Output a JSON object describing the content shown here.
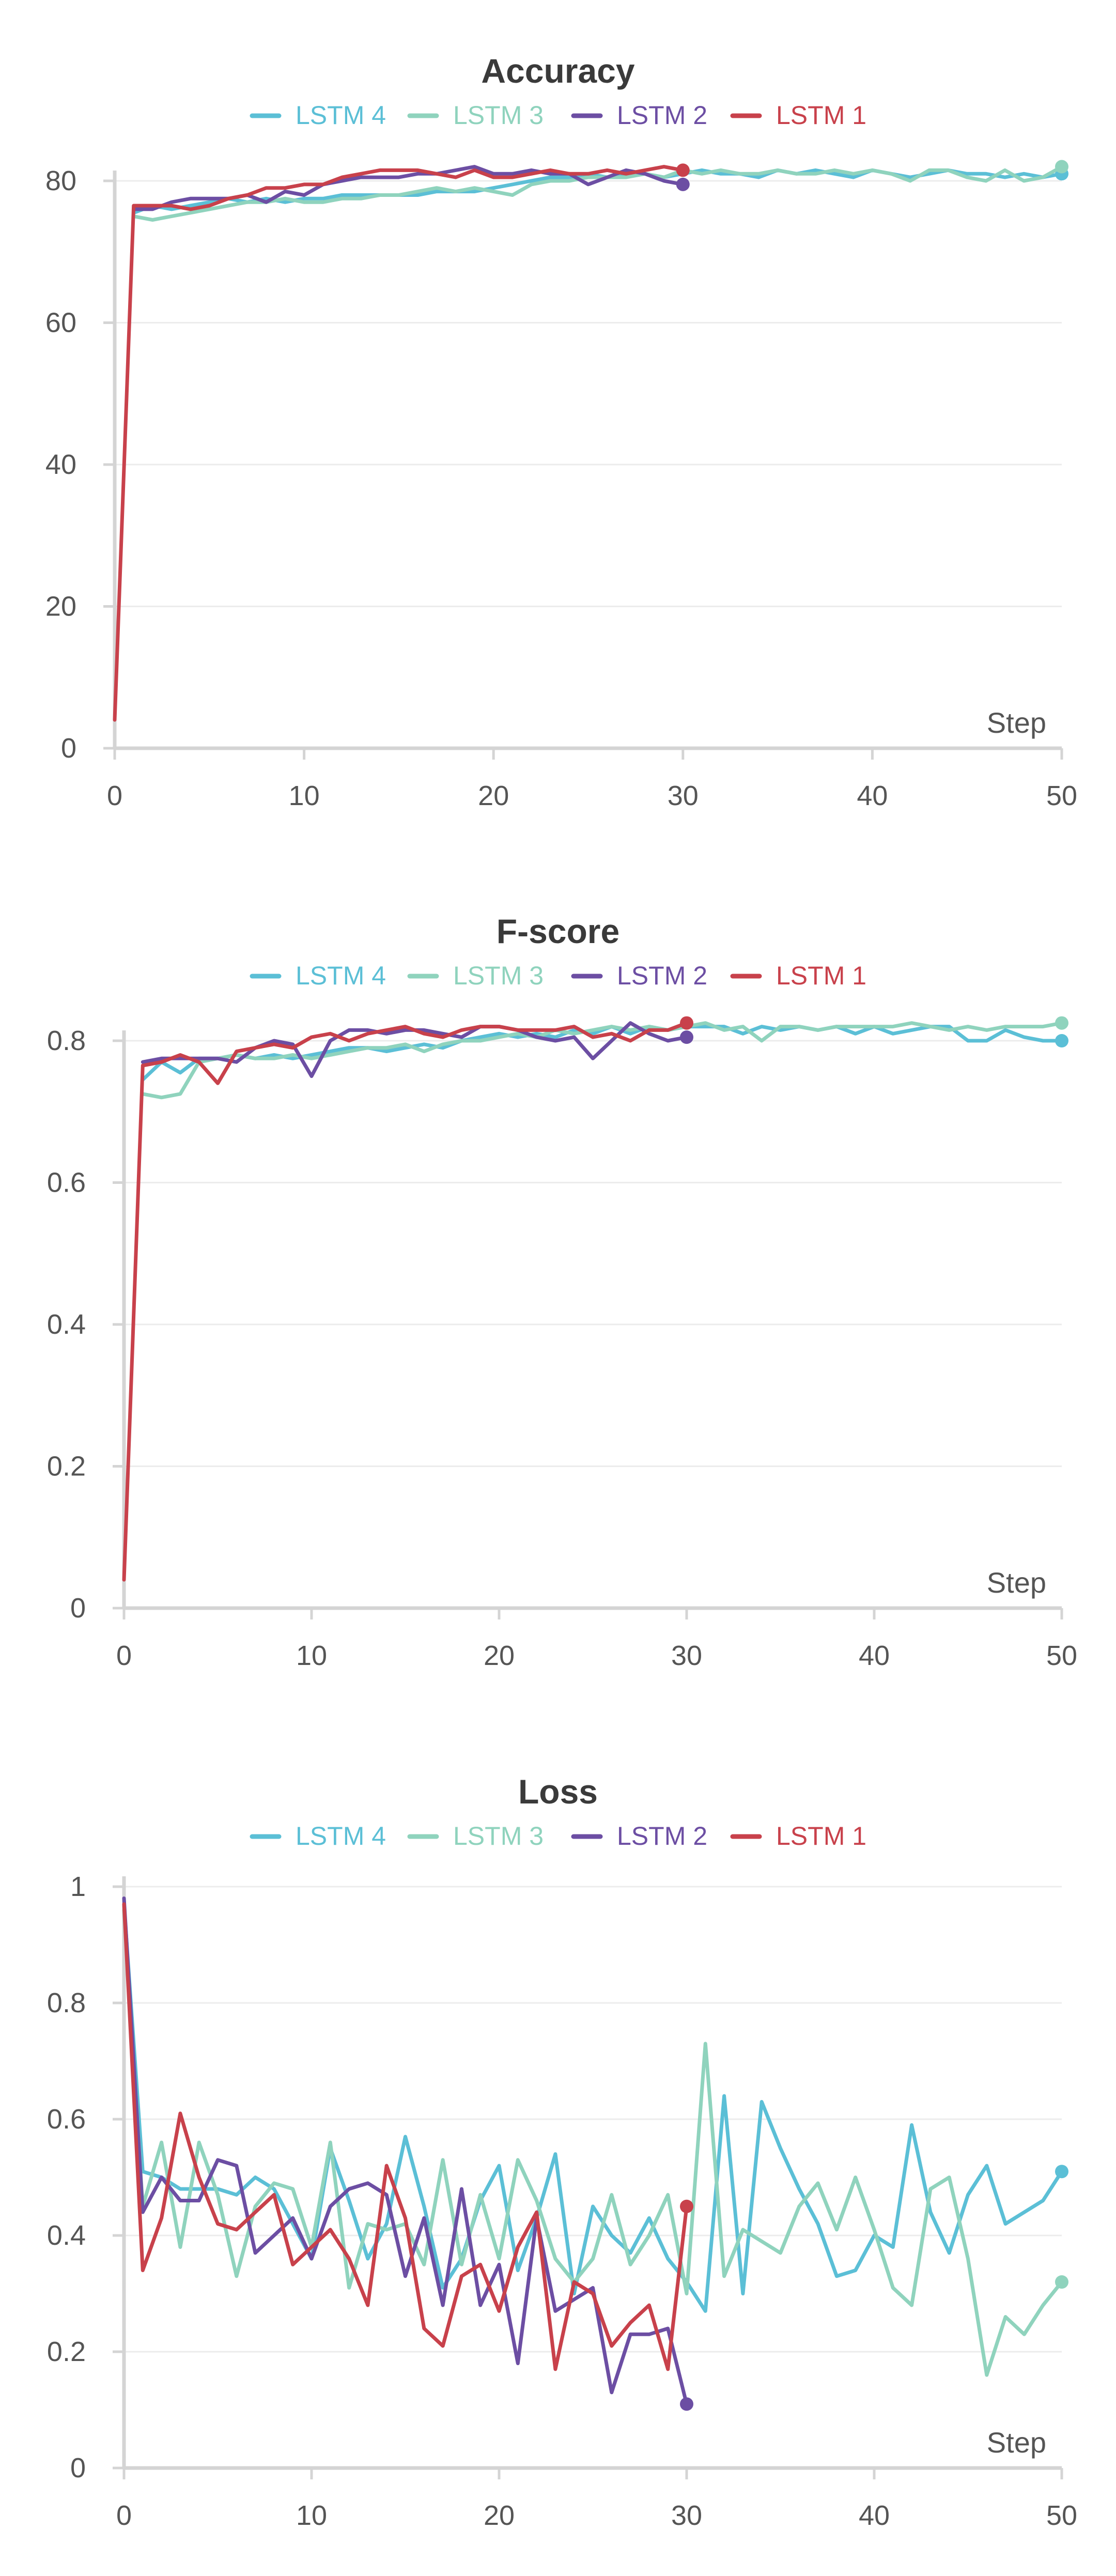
{
  "colors": {
    "LSTM 4": "#5bbfd6",
    "LSTM 3": "#8fd3bd",
    "LSTM 2": "#6c4ea3",
    "LSTM 1": "#c8414b"
  },
  "chart_data": [
    {
      "type": "line",
      "title": "Accuracy",
      "xlabel": "Step",
      "ylabel": "",
      "xlim": [
        0,
        50
      ],
      "ylim": [
        0,
        80
      ],
      "xticks": [
        0,
        10,
        20,
        30,
        40,
        50
      ],
      "yticks": [
        0,
        20,
        40,
        60,
        80
      ],
      "grid": true,
      "legend": "top-center",
      "series": [
        {
          "name": "LSTM 4",
          "x": [
            1,
            2,
            3,
            4,
            5,
            6,
            7,
            8,
            9,
            10,
            11,
            12,
            13,
            14,
            15,
            16,
            17,
            18,
            19,
            20,
            21,
            22,
            23,
            24,
            25,
            26,
            27,
            28,
            29,
            30,
            31,
            32,
            33,
            34,
            35,
            36,
            37,
            38,
            39,
            40,
            41,
            42,
            43,
            44,
            45,
            46,
            47,
            48,
            49,
            50
          ],
          "y": [
            75.5,
            76.5,
            76,
            76.5,
            77,
            77.5,
            77,
            77.5,
            77,
            77.5,
            77.5,
            78,
            78,
            78,
            78,
            78,
            78.5,
            78.5,
            78.5,
            79,
            79.5,
            80,
            80.5,
            80.5,
            81,
            80.5,
            81,
            81,
            80.5,
            81,
            81.5,
            81,
            81,
            80.5,
            81.5,
            81,
            81.5,
            81,
            80.5,
            81.5,
            81,
            80.5,
            81,
            81.5,
            81,
            81,
            80.5,
            81,
            80.5,
            81
          ]
        },
        {
          "name": "LSTM 3",
          "x": [
            1,
            2,
            3,
            4,
            5,
            6,
            7,
            8,
            9,
            10,
            11,
            12,
            13,
            14,
            15,
            16,
            17,
            18,
            19,
            20,
            21,
            22,
            23,
            24,
            25,
            26,
            27,
            28,
            29,
            30,
            31,
            32,
            33,
            34,
            35,
            36,
            37,
            38,
            39,
            40,
            41,
            42,
            43,
            44,
            45,
            46,
            47,
            48,
            49,
            50
          ],
          "y": [
            75,
            74.5,
            75,
            75.5,
            76,
            76.5,
            77,
            77,
            77.5,
            77,
            77,
            77.5,
            77.5,
            78,
            78,
            78.5,
            79,
            78.5,
            79,
            78.5,
            78,
            79.5,
            80,
            80,
            80.5,
            80.5,
            80.5,
            81,
            80.5,
            81.5,
            81,
            81.5,
            81,
            81,
            81.5,
            81,
            81,
            81.5,
            81,
            81.5,
            81,
            80,
            81.5,
            81.5,
            80.5,
            80,
            81.5,
            80,
            80.5,
            82
          ]
        },
        {
          "name": "LSTM 2",
          "x": [
            1,
            2,
            3,
            4,
            5,
            6,
            7,
            8,
            9,
            10,
            11,
            12,
            13,
            14,
            15,
            16,
            17,
            18,
            19,
            20,
            21,
            22,
            23,
            24,
            25,
            26,
            27,
            28,
            29,
            30
          ],
          "y": [
            76,
            76,
            77,
            77.5,
            77.5,
            77.5,
            78,
            77,
            78.5,
            78,
            79.5,
            80,
            80.5,
            80.5,
            80.5,
            81,
            81,
            81.5,
            82,
            81,
            81,
            81.5,
            81,
            81,
            79.5,
            80.5,
            81.5,
            81,
            80,
            79.5
          ]
        },
        {
          "name": "LSTM 1",
          "x": [
            0,
            1,
            2,
            3,
            4,
            5,
            6,
            7,
            8,
            9,
            10,
            11,
            12,
            13,
            14,
            15,
            16,
            17,
            18,
            19,
            20,
            21,
            22,
            23,
            24,
            25,
            26,
            27,
            28,
            29,
            30
          ],
          "y": [
            4,
            76.5,
            76.5,
            76.5,
            76,
            76.5,
            77.5,
            78,
            79,
            79,
            79.5,
            79.5,
            80.5,
            81,
            81.5,
            81.5,
            81.5,
            81,
            80.5,
            81.5,
            80.5,
            80.5,
            81,
            81.5,
            81,
            81,
            81.5,
            81,
            81.5,
            82,
            81.5
          ]
        }
      ]
    },
    {
      "type": "line",
      "title": "F-score",
      "xlabel": "Step",
      "ylabel": "",
      "xlim": [
        0,
        50
      ],
      "ylim": [
        0,
        0.8
      ],
      "xticks": [
        0,
        10,
        20,
        30,
        40,
        50
      ],
      "yticks": [
        0,
        0.2,
        0.4,
        0.6,
        0.8
      ],
      "grid": true,
      "legend": "top-center",
      "series": [
        {
          "name": "LSTM 4",
          "x": [
            1,
            2,
            3,
            4,
            5,
            6,
            7,
            8,
            9,
            10,
            11,
            12,
            13,
            14,
            15,
            16,
            17,
            18,
            19,
            20,
            21,
            22,
            23,
            24,
            25,
            26,
            27,
            28,
            29,
            30,
            31,
            32,
            33,
            34,
            35,
            36,
            37,
            38,
            39,
            40,
            41,
            42,
            43,
            44,
            45,
            46,
            47,
            48,
            49,
            50
          ],
          "y": [
            0.745,
            0.77,
            0.755,
            0.775,
            0.775,
            0.78,
            0.775,
            0.78,
            0.775,
            0.78,
            0.785,
            0.79,
            0.79,
            0.785,
            0.79,
            0.795,
            0.79,
            0.8,
            0.805,
            0.81,
            0.805,
            0.81,
            0.805,
            0.815,
            0.81,
            0.82,
            0.81,
            0.82,
            0.815,
            0.82,
            0.82,
            0.82,
            0.81,
            0.82,
            0.815,
            0.82,
            0.815,
            0.82,
            0.81,
            0.82,
            0.81,
            0.815,
            0.82,
            0.82,
            0.8,
            0.8,
            0.815,
            0.805,
            0.8,
            0.8
          ]
        },
        {
          "name": "LSTM 3",
          "x": [
            1,
            2,
            3,
            4,
            5,
            6,
            7,
            8,
            9,
            10,
            11,
            12,
            13,
            14,
            15,
            16,
            17,
            18,
            19,
            20,
            21,
            22,
            23,
            24,
            25,
            26,
            27,
            28,
            29,
            30,
            31,
            32,
            33,
            34,
            35,
            36,
            37,
            38,
            39,
            40,
            41,
            42,
            43,
            44,
            45,
            46,
            47,
            48,
            49,
            50
          ],
          "y": [
            0.725,
            0.72,
            0.725,
            0.77,
            0.775,
            0.78,
            0.775,
            0.775,
            0.78,
            0.775,
            0.78,
            0.785,
            0.79,
            0.79,
            0.795,
            0.785,
            0.795,
            0.8,
            0.8,
            0.805,
            0.81,
            0.805,
            0.815,
            0.81,
            0.815,
            0.82,
            0.815,
            0.82,
            0.815,
            0.82,
            0.825,
            0.815,
            0.82,
            0.8,
            0.82,
            0.82,
            0.815,
            0.82,
            0.82,
            0.82,
            0.82,
            0.825,
            0.82,
            0.815,
            0.82,
            0.815,
            0.82,
            0.82,
            0.82,
            0.825
          ]
        },
        {
          "name": "LSTM 2",
          "x": [
            1,
            2,
            3,
            4,
            5,
            6,
            7,
            8,
            9,
            10,
            11,
            12,
            13,
            14,
            15,
            16,
            17,
            18,
            19,
            20,
            21,
            22,
            23,
            24,
            25,
            26,
            27,
            28,
            29,
            30
          ],
          "y": [
            0.77,
            0.775,
            0.775,
            0.775,
            0.775,
            0.77,
            0.79,
            0.8,
            0.795,
            0.75,
            0.8,
            0.815,
            0.815,
            0.81,
            0.815,
            0.815,
            0.81,
            0.805,
            0.82,
            0.82,
            0.815,
            0.805,
            0.8,
            0.805,
            0.775,
            0.8,
            0.825,
            0.81,
            0.8,
            0.805
          ]
        },
        {
          "name": "LSTM 1",
          "x": [
            0,
            1,
            2,
            3,
            4,
            5,
            6,
            7,
            8,
            9,
            10,
            11,
            12,
            13,
            14,
            15,
            16,
            17,
            18,
            19,
            20,
            21,
            22,
            23,
            24,
            25,
            26,
            27,
            28,
            29,
            30
          ],
          "y": [
            0.04,
            0.765,
            0.77,
            0.78,
            0.77,
            0.74,
            0.785,
            0.79,
            0.795,
            0.79,
            0.805,
            0.81,
            0.8,
            0.81,
            0.815,
            0.82,
            0.81,
            0.805,
            0.815,
            0.82,
            0.82,
            0.815,
            0.815,
            0.815,
            0.82,
            0.805,
            0.81,
            0.8,
            0.815,
            0.815,
            0.825
          ]
        }
      ]
    },
    {
      "type": "line",
      "title": "Loss",
      "xlabel": "Step",
      "ylabel": "",
      "xlim": [
        0,
        50
      ],
      "ylim": [
        0,
        1
      ],
      "xticks": [
        0,
        10,
        20,
        30,
        40,
        50
      ],
      "yticks": [
        0,
        0.2,
        0.4,
        0.6,
        0.8,
        1
      ],
      "grid": true,
      "legend": "top-center",
      "series": [
        {
          "name": "LSTM 4",
          "x": [
            0,
            1,
            2,
            3,
            4,
            5,
            6,
            7,
            8,
            9,
            10,
            11,
            12,
            13,
            14,
            15,
            16,
            17,
            18,
            19,
            20,
            21,
            22,
            23,
            24,
            25,
            26,
            27,
            28,
            29,
            30,
            31,
            32,
            33,
            34,
            35,
            36,
            37,
            38,
            39,
            40,
            41,
            42,
            43,
            44,
            45,
            46,
            47,
            48,
            49,
            50
          ],
          "y": [
            0.97,
            0.51,
            0.5,
            0.48,
            0.48,
            0.48,
            0.47,
            0.5,
            0.48,
            0.42,
            0.36,
            0.55,
            0.46,
            0.36,
            0.42,
            0.57,
            0.45,
            0.31,
            0.36,
            0.46,
            0.52,
            0.34,
            0.43,
            0.54,
            0.3,
            0.45,
            0.4,
            0.37,
            0.43,
            0.36,
            0.32,
            0.27,
            0.64,
            0.3,
            0.63,
            0.55,
            0.48,
            0.42,
            0.33,
            0.34,
            0.4,
            0.38,
            0.59,
            0.44,
            0.37,
            0.47,
            0.52,
            0.42,
            0.44,
            0.46,
            0.51
          ]
        },
        {
          "name": "LSTM 3",
          "x": [
            0,
            1,
            2,
            3,
            4,
            5,
            6,
            7,
            8,
            9,
            10,
            11,
            12,
            13,
            14,
            15,
            16,
            17,
            18,
            19,
            20,
            21,
            22,
            23,
            24,
            25,
            26,
            27,
            28,
            29,
            30,
            31,
            32,
            33,
            34,
            35,
            36,
            37,
            38,
            39,
            40,
            41,
            42,
            43,
            44,
            45,
            46,
            47,
            48,
            49,
            50
          ],
          "y": [
            0.96,
            0.45,
            0.56,
            0.38,
            0.56,
            0.47,
            0.33,
            0.45,
            0.49,
            0.48,
            0.38,
            0.56,
            0.31,
            0.42,
            0.41,
            0.42,
            0.35,
            0.53,
            0.35,
            0.47,
            0.36,
            0.53,
            0.46,
            0.36,
            0.32,
            0.36,
            0.47,
            0.35,
            0.4,
            0.47,
            0.3,
            0.73,
            0.33,
            0.41,
            0.39,
            0.37,
            0.45,
            0.49,
            0.41,
            0.5,
            0.41,
            0.31,
            0.28,
            0.48,
            0.5,
            0.36,
            0.16,
            0.26,
            0.23,
            0.28,
            0.32
          ]
        },
        {
          "name": "LSTM 2",
          "x": [
            0,
            1,
            2,
            3,
            4,
            5,
            6,
            7,
            8,
            9,
            10,
            11,
            12,
            13,
            14,
            15,
            16,
            17,
            18,
            19,
            20,
            21,
            22,
            23,
            24,
            25,
            26,
            27,
            28,
            29,
            30
          ],
          "y": [
            0.98,
            0.44,
            0.5,
            0.46,
            0.46,
            0.53,
            0.52,
            0.37,
            0.4,
            0.43,
            0.36,
            0.45,
            0.48,
            0.49,
            0.47,
            0.33,
            0.43,
            0.28,
            0.48,
            0.28,
            0.35,
            0.18,
            0.43,
            0.27,
            0.29,
            0.31,
            0.13,
            0.23,
            0.23,
            0.24,
            0.11
          ]
        },
        {
          "name": "LSTM 1",
          "x": [
            0,
            1,
            2,
            3,
            4,
            5,
            6,
            7,
            8,
            9,
            10,
            11,
            12,
            13,
            14,
            15,
            16,
            17,
            18,
            19,
            20,
            21,
            22,
            23,
            24,
            25,
            26,
            27,
            28,
            29,
            30
          ],
          "y": [
            0.97,
            0.34,
            0.43,
            0.61,
            0.5,
            0.42,
            0.41,
            0.44,
            0.47,
            0.35,
            0.38,
            0.41,
            0.36,
            0.28,
            0.52,
            0.43,
            0.24,
            0.21,
            0.33,
            0.35,
            0.27,
            0.38,
            0.44,
            0.17,
            0.32,
            0.3,
            0.21,
            0.25,
            0.28,
            0.17,
            0.45
          ]
        }
      ]
    }
  ]
}
